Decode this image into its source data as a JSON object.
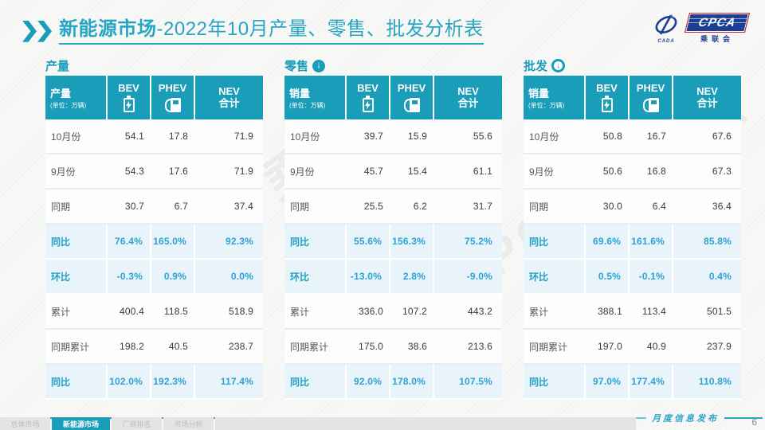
{
  "title": {
    "bold": "新能源市场",
    "rest": "-2022年10月产量、零售、批发分析表"
  },
  "logos": {
    "cada_caption": "CADA",
    "cpca_text": "CPCA",
    "cpca_caption": "乘联会"
  },
  "watermark": "CPCA 乘联会",
  "colors": {
    "accent_teal": "#1A9DB9",
    "title_teal": "#27A6C4",
    "highlight_text": "#2BA3D6",
    "highlight_row_bg": "#E8F4FA",
    "logo_navy": "#1C3F94",
    "logo_red": "#C8202F"
  },
  "tables": [
    {
      "section": "产量",
      "arrow": "none",
      "unit_label": "产量",
      "unit_sub": "(单位：万辆)",
      "columns": [
        {
          "label": "BEV",
          "icon": "bev-battery-icon"
        },
        {
          "label": "PHEV",
          "icon": "phev-charger-icon"
        },
        {
          "label": "NEV",
          "label2": "合计"
        }
      ],
      "rows": [
        {
          "label": "10月份",
          "values": [
            "54.1",
            "17.8",
            "71.9"
          ],
          "hl": false
        },
        {
          "label": "9月份",
          "values": [
            "54.3",
            "17.6",
            "71.9"
          ],
          "hl": false
        },
        {
          "label": "同期",
          "values": [
            "30.7",
            "6.7",
            "37.4"
          ],
          "hl": false
        },
        {
          "label": "同比",
          "values": [
            "76.4%",
            "165.0%",
            "92.3%"
          ],
          "hl": true
        },
        {
          "label": "环比",
          "values": [
            "-0.3%",
            "0.9%",
            "0.0%"
          ],
          "hl": true
        },
        {
          "label": "累计",
          "values": [
            "400.4",
            "118.5",
            "518.9"
          ],
          "hl": false
        },
        {
          "label": "同期累计",
          "values": [
            "198.2",
            "40.5",
            "238.7"
          ],
          "hl": false
        },
        {
          "label": "同比",
          "values": [
            "102.0%",
            "192.3%",
            "117.4%"
          ],
          "hl": true
        }
      ]
    },
    {
      "section": "零售",
      "arrow": "solid",
      "unit_label": "销量",
      "unit_sub": "(单位：万辆)",
      "columns": [
        {
          "label": "BEV",
          "icon": "bev-battery-icon"
        },
        {
          "label": "PHEV",
          "icon": "phev-charger-icon"
        },
        {
          "label": "NEV",
          "label2": "合计"
        }
      ],
      "rows": [
        {
          "label": "10月份",
          "values": [
            "39.7",
            "15.9",
            "55.6"
          ],
          "hl": false
        },
        {
          "label": "9月份",
          "values": [
            "45.7",
            "15.4",
            "61.1"
          ],
          "hl": false
        },
        {
          "label": "同期",
          "values": [
            "25.5",
            "6.2",
            "31.7"
          ],
          "hl": false
        },
        {
          "label": "同比",
          "values": [
            "55.6%",
            "156.3%",
            "75.2%"
          ],
          "hl": true
        },
        {
          "label": "环比",
          "values": [
            "-13.0%",
            "2.8%",
            "-9.0%"
          ],
          "hl": true
        },
        {
          "label": "累计",
          "values": [
            "336.0",
            "107.2",
            "443.2"
          ],
          "hl": false
        },
        {
          "label": "同期累计",
          "values": [
            "175.0",
            "38.6",
            "213.6"
          ],
          "hl": false
        },
        {
          "label": "同比",
          "values": [
            "92.0%",
            "178.0%",
            "107.5%"
          ],
          "hl": true
        }
      ]
    },
    {
      "section": "批发",
      "arrow": "ring",
      "unit_label": "销量",
      "unit_sub": "(单位：万辆)",
      "columns": [
        {
          "label": "BEV",
          "icon": "bev-battery-icon"
        },
        {
          "label": "PHEV",
          "icon": "phev-charger-icon"
        },
        {
          "label": "NEV",
          "label2": "合计"
        }
      ],
      "rows": [
        {
          "label": "10月份",
          "values": [
            "50.8",
            "16.7",
            "67.6"
          ],
          "hl": false
        },
        {
          "label": "9月份",
          "values": [
            "50.6",
            "16.8",
            "67.3"
          ],
          "hl": false
        },
        {
          "label": "同期",
          "values": [
            "30.0",
            "6.4",
            "36.4"
          ],
          "hl": false
        },
        {
          "label": "同比",
          "values": [
            "69.6%",
            "161.6%",
            "85.8%"
          ],
          "hl": true
        },
        {
          "label": "环比",
          "values": [
            "0.5%",
            "-0.1%",
            "0.4%"
          ],
          "hl": true
        },
        {
          "label": "累计",
          "values": [
            "388.1",
            "113.4",
            "501.5"
          ],
          "hl": false
        },
        {
          "label": "同期累计",
          "values": [
            "197.0",
            "40.9",
            "237.9"
          ],
          "hl": false
        },
        {
          "label": "同比",
          "values": [
            "97.0%",
            "177.4%",
            "110.8%"
          ],
          "hl": true
        }
      ]
    }
  ],
  "footer": {
    "ribbon": "月度信息发布",
    "page": "6",
    "tabs": [
      {
        "label": "总体市场",
        "active": false
      },
      {
        "label": "新能源市场",
        "active": true
      },
      {
        "label": "厂商排名",
        "active": false
      },
      {
        "label": "市场分析",
        "active": false
      }
    ]
  }
}
